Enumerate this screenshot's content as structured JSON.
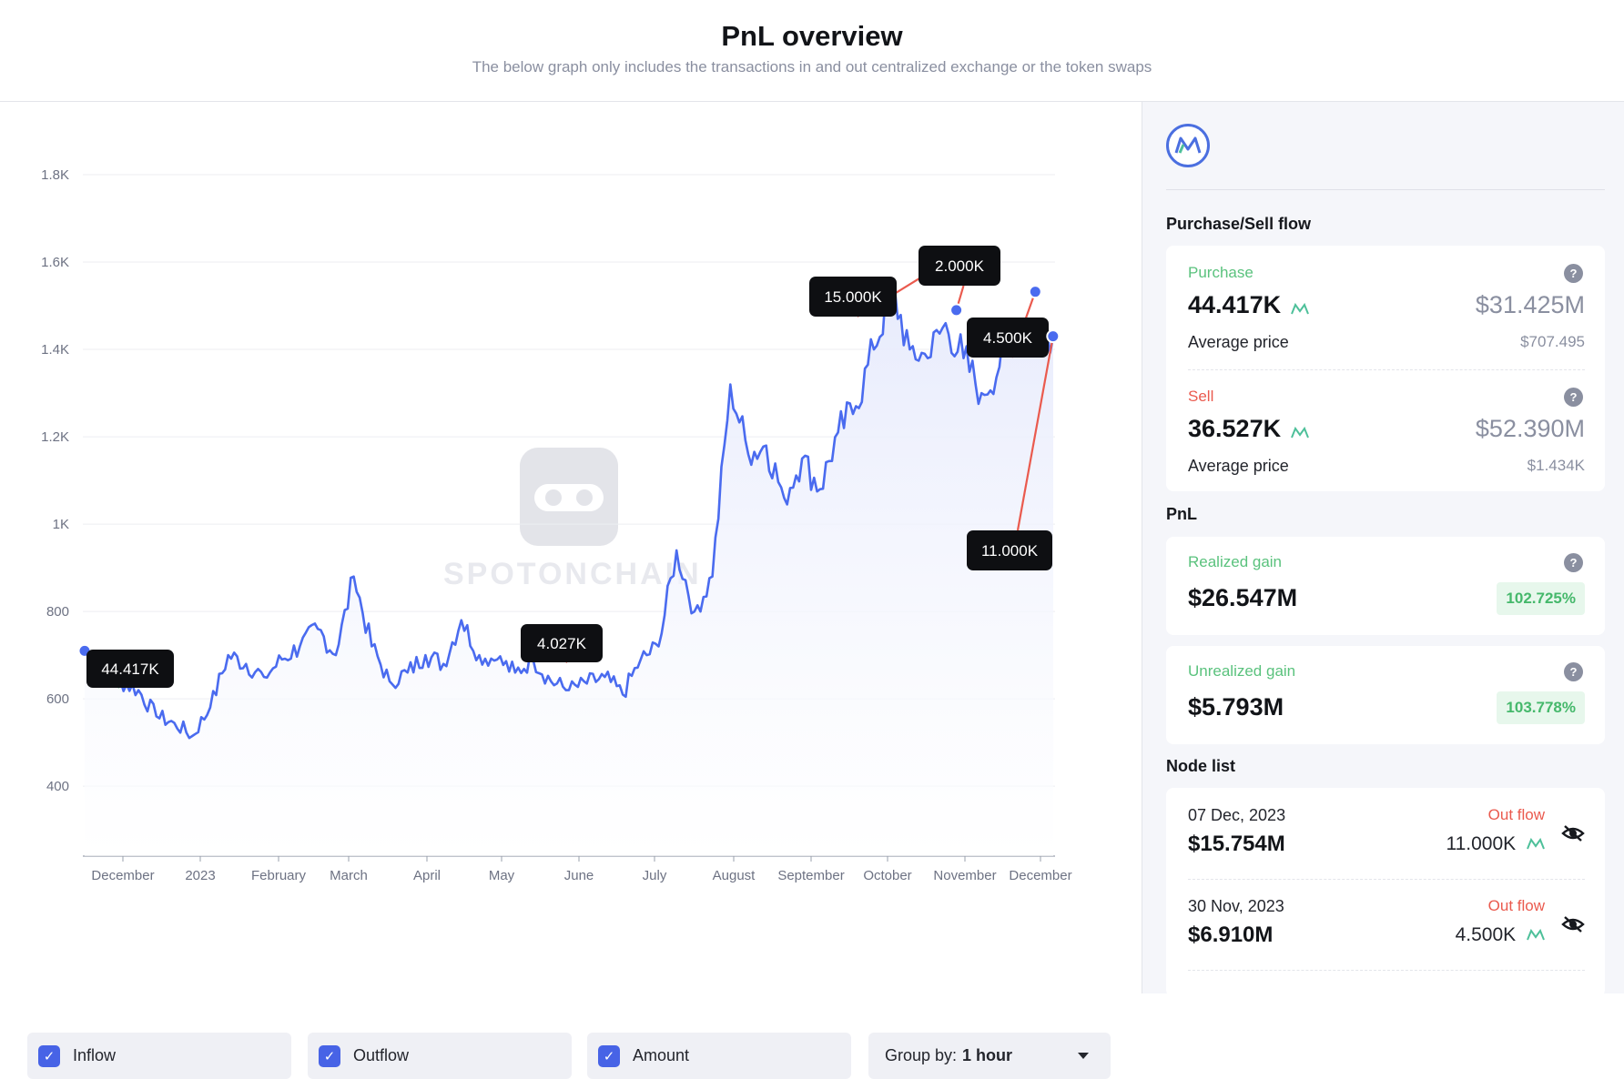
{
  "header": {
    "title": "PnL overview",
    "subtitle": "The below graph only includes the transactions in and out centralized exchange or the token swaps"
  },
  "chart_data": {
    "type": "line",
    "title": "",
    "xlabel": "",
    "ylabel": "",
    "ylim": [
      240,
      1800
    ],
    "yticks": [
      "400",
      "600",
      "800",
      "1K",
      "1.2K",
      "1.4K",
      "1.6K",
      "1.8K"
    ],
    "xticks": [
      "December",
      "2023",
      "February",
      "March",
      "April",
      "May",
      "June",
      "July",
      "August",
      "September",
      "October",
      "November",
      "December"
    ],
    "grid": "horizontal",
    "series": [
      {
        "values_approx_weekly": [
          710,
          660,
          640,
          620,
          560,
          545,
          515,
          580,
          700,
          680,
          650,
          690,
          720,
          760,
          700,
          880,
          720,
          640,
          660,
          700,
          680,
          780,
          700,
          690,
          660,
          690,
          640,
          620,
          635,
          650,
          610,
          690,
          720,
          940,
          800,
          880,
          1320,
          1160,
          1180,
          1060,
          1150,
          1080,
          1210,
          1270,
          1400,
          1540,
          1400,
          1380,
          1460,
          1380,
          1300,
          1360,
          1460,
          1450,
          1430
        ]
      }
    ],
    "annotations": [
      {
        "label": "44.417K",
        "type": "inflow"
      },
      {
        "label": "4.027K",
        "type": "outflow"
      },
      {
        "label": "15.000K",
        "type": "outflow"
      },
      {
        "label": "2.000K",
        "type": "outflow"
      },
      {
        "label": "4.500K",
        "type": "outflow"
      },
      {
        "label": "11.000K",
        "type": "outflow"
      }
    ],
    "watermark": "SPOTONCHAIN"
  },
  "colors": {
    "line": "#4a6bef",
    "inflow": "#5ac27d",
    "outflow": "#ea5a4e",
    "accent": "#4763e6"
  },
  "controls": {
    "inflow_label": "Inflow",
    "outflow_label": "Outflow",
    "amount_label": "Amount",
    "group_by_label": "Group by:",
    "group_by_value": "1 hour"
  },
  "sidebar": {
    "token_icon": "m-logo-icon",
    "purchase_sell_title": "Purchase/Sell flow",
    "purchase": {
      "label": "Purchase",
      "amount": "44.417K",
      "usd": "$31.425M",
      "avg_label": "Average price",
      "avg_value": "$707.495"
    },
    "sell": {
      "label": "Sell",
      "amount": "36.527K",
      "usd": "$52.390M",
      "avg_label": "Average price",
      "avg_value": "$1.434K"
    },
    "pnl_title": "PnL",
    "realized": {
      "label": "Realized gain",
      "value": "$26.547M",
      "pct": "102.725%"
    },
    "unrealized": {
      "label": "Unrealized gain",
      "value": "$5.793M",
      "pct": "103.778%"
    },
    "node_list_title": "Node list",
    "nodes": [
      {
        "date": "07 Dec, 2023",
        "flow": "Out flow",
        "usd": "$15.754M",
        "amount": "11.000K"
      },
      {
        "date": "30 Nov, 2023",
        "flow": "Out flow",
        "usd": "$6.910M",
        "amount": "4.500K"
      }
    ]
  }
}
